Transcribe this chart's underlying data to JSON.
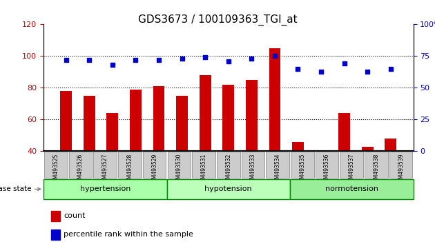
{
  "title": "GDS3673 / 100109363_TGI_at",
  "samples": [
    "GSM493525",
    "GSM493526",
    "GSM493527",
    "GSM493528",
    "GSM493529",
    "GSM493530",
    "GSM493531",
    "GSM493532",
    "GSM493533",
    "GSM493534",
    "GSM493535",
    "GSM493536",
    "GSM493537",
    "GSM493538",
    "GSM493539"
  ],
  "count_values": [
    78,
    75,
    64,
    79,
    81,
    75,
    88,
    82,
    85,
    105,
    46,
    40,
    64,
    43,
    48
  ],
  "percentile_values": [
    72,
    72,
    68,
    72,
    72,
    73,
    74,
    71,
    73,
    75,
    65,
    63,
    69,
    63,
    65
  ],
  "groups": [
    {
      "label": "hypertension",
      "start": 0,
      "end": 5,
      "color": "#aaffaa"
    },
    {
      "label": "hypotension",
      "start": 5,
      "end": 10,
      "color": "#ccffcc"
    },
    {
      "label": "normotension",
      "start": 10,
      "end": 15,
      "color": "#88ee88"
    }
  ],
  "bar_color": "#cc0000",
  "dot_color": "#0000cc",
  "ylim_left": [
    40,
    120
  ],
  "ylim_right": [
    0,
    100
  ],
  "yticks_left": [
    40,
    60,
    80,
    100,
    120
  ],
  "yticks_right": [
    0,
    25,
    50,
    75,
    100
  ],
  "background_color": "#ffffff",
  "plot_bg_color": "#ffffff",
  "grid_color": "#000000"
}
